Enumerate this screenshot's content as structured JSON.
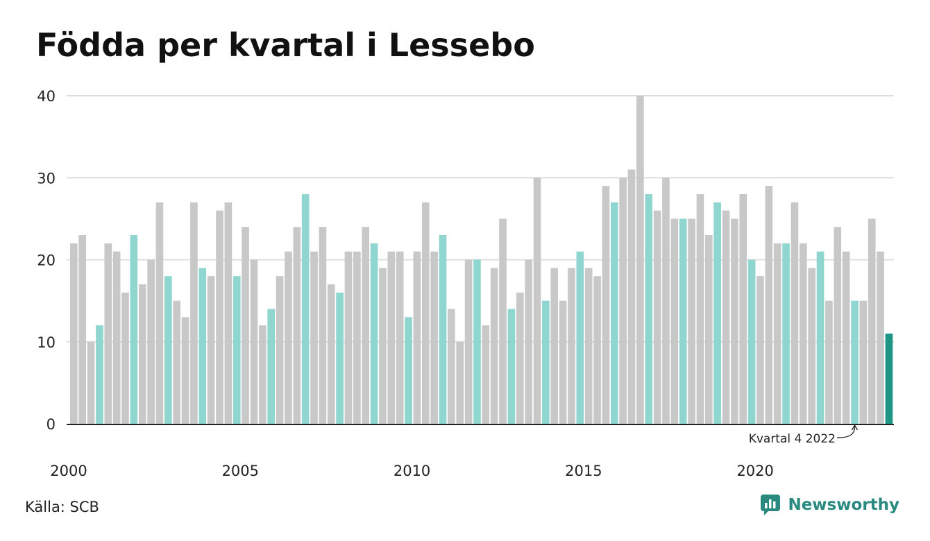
{
  "chart_data": {
    "type": "bar",
    "title": "Födda per kvartal i Lessebo",
    "xlabel": "",
    "ylabel": "",
    "ylim": [
      0,
      40
    ],
    "yticks": [
      0,
      10,
      20,
      30,
      40
    ],
    "xtick_labels": [
      "2000",
      "2005",
      "2010",
      "2015",
      "2020"
    ],
    "start_year": 2000,
    "highlight_quarter": 4,
    "grid": true,
    "colors": {
      "default": "#c8c8c8",
      "highlight_quarter": "#8ed6cf",
      "latest": "#1e9585",
      "grid": "#dddddd",
      "axis": "#222222"
    },
    "values": [
      22,
      23,
      10,
      12,
      22,
      21,
      16,
      23,
      17,
      20,
      27,
      18,
      15,
      13,
      27,
      19,
      18,
      26,
      27,
      18,
      24,
      20,
      12,
      14,
      18,
      21,
      24,
      28,
      21,
      24,
      17,
      16,
      21,
      21,
      24,
      22,
      19,
      21,
      21,
      13,
      21,
      27,
      21,
      23,
      14,
      10,
      20,
      20,
      12,
      19,
      25,
      14,
      16,
      20,
      30,
      15,
      19,
      15,
      19,
      21,
      19,
      18,
      29,
      27,
      30,
      31,
      40,
      28,
      26,
      30,
      25,
      25,
      25,
      28,
      23,
      27,
      26,
      25,
      28,
      20,
      18,
      29,
      22,
      22,
      27,
      22,
      19,
      21,
      15,
      24,
      21,
      15,
      15,
      25,
      21,
      11
    ],
    "annotation": {
      "label": "Kvartal 4 2022",
      "quarter_index": 91
    }
  },
  "source": "Källa: SCB",
  "brand": {
    "name": "Newsworthy",
    "color": "#2a8a80",
    "icon": "newsworthy-logo-icon"
  }
}
